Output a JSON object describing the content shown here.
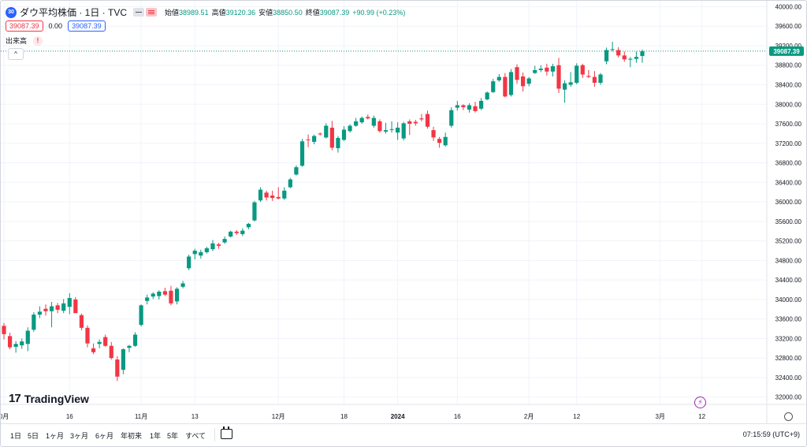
{
  "header": {
    "symbol_icon": "30",
    "title": "ダウ平均株価 · 1日 · TVC",
    "ohlc": [
      {
        "label": "始値",
        "value": "38989.51"
      },
      {
        "label": "高値",
        "value": "39120.36"
      },
      {
        "label": "安値",
        "value": "38850.50"
      },
      {
        "label": "終値",
        "value": "39087.39"
      }
    ],
    "change": "+90.99 (+0.23%)",
    "sell_price": "39087.39",
    "spread": "0.00",
    "buy_price": "39087.39",
    "volume_label": "出来高",
    "warning_mark": "!",
    "collapse_glyph": "^"
  },
  "chart_data": {
    "type": "candlestick",
    "y_ticks": [
      32000,
      32400,
      32800,
      33200,
      33600,
      34000,
      34400,
      34800,
      35200,
      35600,
      36000,
      36400,
      36800,
      37200,
      37600,
      38000,
      38400,
      38800,
      39200,
      39600,
      40000
    ],
    "y_tick_labels": [
      "32000.00",
      "32400.00",
      "32800.00",
      "33200.00",
      "33600.00",
      "34000.00",
      "34400.00",
      "34800.00",
      "35200.00",
      "35600.00",
      "36000.00",
      "36400.00",
      "36800.00",
      "37200.00",
      "37600.00",
      "38000.00",
      "38400.00",
      "38800.00",
      "39200.00",
      "39600.00",
      "40000.00"
    ],
    "ylim": [
      31850,
      40120
    ],
    "last_price_label": "39087.39",
    "last_price": 39087.39,
    "x_ticks": [
      {
        "label": "0月",
        "index": 0
      },
      {
        "label": "16",
        "index": 11
      },
      {
        "label": "11月",
        "index": 23
      },
      {
        "label": "13",
        "index": 32
      },
      {
        "label": "12月",
        "index": 46
      },
      {
        "label": "18",
        "index": 57
      },
      {
        "label": "2024",
        "index": 66
      },
      {
        "label": "16",
        "index": 76
      },
      {
        "label": "2月",
        "index": 88
      },
      {
        "label": "12",
        "index": 96
      },
      {
        "label": "3月",
        "index": 110
      },
      {
        "label": "12",
        "index": 117
      }
    ],
    "candles": [
      {
        "o": 33460,
        "h": 33520,
        "l": 33180,
        "c": 33290
      },
      {
        "o": 33250,
        "h": 33320,
        "l": 32980,
        "c": 33020
      },
      {
        "o": 33030,
        "h": 33150,
        "l": 32910,
        "c": 33090
      },
      {
        "o": 33060,
        "h": 33200,
        "l": 32990,
        "c": 33140
      },
      {
        "o": 33090,
        "h": 33430,
        "l": 32940,
        "c": 33360
      },
      {
        "o": 33380,
        "h": 33740,
        "l": 33340,
        "c": 33690
      },
      {
        "o": 33690,
        "h": 33860,
        "l": 33620,
        "c": 33750
      },
      {
        "o": 33810,
        "h": 33900,
        "l": 33670,
        "c": 33760
      },
      {
        "o": 33760,
        "h": 33950,
        "l": 33430,
        "c": 33860
      },
      {
        "o": 33880,
        "h": 33930,
        "l": 33720,
        "c": 33790
      },
      {
        "o": 33770,
        "h": 34010,
        "l": 33720,
        "c": 33920
      },
      {
        "o": 33850,
        "h": 34130,
        "l": 33700,
        "c": 34030
      },
      {
        "o": 34000,
        "h": 34050,
        "l": 33740,
        "c": 33720
      },
      {
        "o": 33680,
        "h": 33710,
        "l": 33370,
        "c": 33420
      },
      {
        "o": 33420,
        "h": 33470,
        "l": 33020,
        "c": 33100
      },
      {
        "o": 33000,
        "h": 33100,
        "l": 32880,
        "c": 32920
      },
      {
        "o": 33090,
        "h": 33180,
        "l": 33000,
        "c": 33130
      },
      {
        "o": 33230,
        "h": 33280,
        "l": 33030,
        "c": 33050
      },
      {
        "o": 33050,
        "h": 33130,
        "l": 32770,
        "c": 32800
      },
      {
        "o": 32770,
        "h": 32840,
        "l": 32330,
        "c": 32420
      },
      {
        "o": 32560,
        "h": 33000,
        "l": 32470,
        "c": 32980
      },
      {
        "o": 33010,
        "h": 33070,
        "l": 32920,
        "c": 33050
      },
      {
        "o": 33050,
        "h": 33330,
        "l": 33030,
        "c": 33280
      },
      {
        "o": 33480,
        "h": 33900,
        "l": 33450,
        "c": 33880
      },
      {
        "o": 33970,
        "h": 34100,
        "l": 33900,
        "c": 34040
      },
      {
        "o": 34060,
        "h": 34150,
        "l": 34010,
        "c": 34120
      },
      {
        "o": 34070,
        "h": 34190,
        "l": 34000,
        "c": 34160
      },
      {
        "o": 34170,
        "h": 34240,
        "l": 34070,
        "c": 34100
      },
      {
        "o": 34180,
        "h": 34280,
        "l": 33880,
        "c": 33920
      },
      {
        "o": 33960,
        "h": 34250,
        "l": 33900,
        "c": 34220
      },
      {
        "o": 34260,
        "h": 34380,
        "l": 34230,
        "c": 34330
      },
      {
        "o": 34640,
        "h": 34920,
        "l": 34600,
        "c": 34880
      },
      {
        "o": 34930,
        "h": 35040,
        "l": 34820,
        "c": 35000
      },
      {
        "o": 34900,
        "h": 35020,
        "l": 34840,
        "c": 34970
      },
      {
        "o": 34970,
        "h": 35080,
        "l": 34940,
        "c": 35050
      },
      {
        "o": 35030,
        "h": 35220,
        "l": 34990,
        "c": 35150
      },
      {
        "o": 35130,
        "h": 35160,
        "l": 35040,
        "c": 35100
      },
      {
        "o": 35170,
        "h": 35290,
        "l": 35140,
        "c": 35240
      },
      {
        "o": 35290,
        "h": 35410,
        "l": 35270,
        "c": 35390
      },
      {
        "o": 35390,
        "h": 35420,
        "l": 35320,
        "c": 35360
      },
      {
        "o": 35340,
        "h": 35460,
        "l": 35300,
        "c": 35410
      },
      {
        "o": 35480,
        "h": 35570,
        "l": 35440,
        "c": 35550
      },
      {
        "o": 35620,
        "h": 36020,
        "l": 35600,
        "c": 35990
      },
      {
        "o": 36030,
        "h": 36300,
        "l": 36000,
        "c": 36250
      },
      {
        "o": 36190,
        "h": 36230,
        "l": 36030,
        "c": 36090
      },
      {
        "o": 36130,
        "h": 36230,
        "l": 36020,
        "c": 36080
      },
      {
        "o": 36100,
        "h": 36300,
        "l": 36050,
        "c": 36070
      },
      {
        "o": 36070,
        "h": 36300,
        "l": 36040,
        "c": 36230
      },
      {
        "o": 36300,
        "h": 36490,
        "l": 36280,
        "c": 36460
      },
      {
        "o": 36560,
        "h": 36750,
        "l": 36540,
        "c": 36710
      },
      {
        "o": 36740,
        "h": 37290,
        "l": 36720,
        "c": 37240
      },
      {
        "o": 37280,
        "h": 37380,
        "l": 37120,
        "c": 37270
      },
      {
        "o": 37230,
        "h": 37380,
        "l": 37180,
        "c": 37350
      },
      {
        "o": 37400,
        "h": 37420,
        "l": 37360,
        "c": 37390
      },
      {
        "o": 37320,
        "h": 37610,
        "l": 37300,
        "c": 37560
      },
      {
        "o": 37520,
        "h": 37660,
        "l": 37060,
        "c": 37110
      },
      {
        "o": 37100,
        "h": 37350,
        "l": 37010,
        "c": 37310
      },
      {
        "o": 37270,
        "h": 37550,
        "l": 37250,
        "c": 37480
      },
      {
        "o": 37450,
        "h": 37590,
        "l": 37420,
        "c": 37560
      },
      {
        "o": 37560,
        "h": 37720,
        "l": 37540,
        "c": 37650
      },
      {
        "o": 37630,
        "h": 37750,
        "l": 37600,
        "c": 37720
      },
      {
        "o": 37740,
        "h": 37790,
        "l": 37690,
        "c": 37710
      },
      {
        "o": 37560,
        "h": 37770,
        "l": 37520,
        "c": 37720
      },
      {
        "o": 37650,
        "h": 37690,
        "l": 37420,
        "c": 37450
      },
      {
        "o": 37440,
        "h": 37620,
        "l": 37400,
        "c": 37470
      },
      {
        "o": 37480,
        "h": 37650,
        "l": 37420,
        "c": 37490
      },
      {
        "o": 37420,
        "h": 37630,
        "l": 37270,
        "c": 37520
      },
      {
        "o": 37300,
        "h": 37640,
        "l": 37260,
        "c": 37610
      },
      {
        "o": 37650,
        "h": 37690,
        "l": 37370,
        "c": 37600
      },
      {
        "o": 37640,
        "h": 37680,
        "l": 37560,
        "c": 37610
      },
      {
        "o": 37710,
        "h": 37800,
        "l": 37650,
        "c": 37690
      },
      {
        "o": 37800,
        "h": 37870,
        "l": 37500,
        "c": 37540
      },
      {
        "o": 37470,
        "h": 37540,
        "l": 37250,
        "c": 37320
      },
      {
        "o": 37290,
        "h": 37330,
        "l": 37110,
        "c": 37210
      },
      {
        "o": 37160,
        "h": 37420,
        "l": 37130,
        "c": 37330
      },
      {
        "o": 37560,
        "h": 37940,
        "l": 37520,
        "c": 37880
      },
      {
        "o": 37930,
        "h": 38070,
        "l": 37870,
        "c": 37980
      },
      {
        "o": 37980,
        "h": 38000,
        "l": 37880,
        "c": 37940
      },
      {
        "o": 37890,
        "h": 38020,
        "l": 37830,
        "c": 37980
      },
      {
        "o": 37960,
        "h": 38050,
        "l": 37830,
        "c": 37860
      },
      {
        "o": 37910,
        "h": 38130,
        "l": 37880,
        "c": 38070
      },
      {
        "o": 38100,
        "h": 38260,
        "l": 38080,
        "c": 38240
      },
      {
        "o": 38250,
        "h": 38520,
        "l": 38230,
        "c": 38470
      },
      {
        "o": 38490,
        "h": 38620,
        "l": 38460,
        "c": 38560
      },
      {
        "o": 38560,
        "h": 38640,
        "l": 38140,
        "c": 38160
      },
      {
        "o": 38190,
        "h": 38720,
        "l": 38160,
        "c": 38660
      },
      {
        "o": 38760,
        "h": 38820,
        "l": 38420,
        "c": 38500
      },
      {
        "o": 38570,
        "h": 38650,
        "l": 38260,
        "c": 38370
      },
      {
        "o": 38420,
        "h": 38560,
        "l": 38370,
        "c": 38530
      },
      {
        "o": 38640,
        "h": 38790,
        "l": 38620,
        "c": 38700
      },
      {
        "o": 38700,
        "h": 38800,
        "l": 38660,
        "c": 38730
      },
      {
        "o": 38750,
        "h": 38830,
        "l": 38590,
        "c": 38670
      },
      {
        "o": 38670,
        "h": 38830,
        "l": 38570,
        "c": 38780
      },
      {
        "o": 38800,
        "h": 38950,
        "l": 38230,
        "c": 38320
      },
      {
        "o": 38300,
        "h": 38490,
        "l": 38030,
        "c": 38430
      },
      {
        "o": 38400,
        "h": 38660,
        "l": 38360,
        "c": 38450
      },
      {
        "o": 38440,
        "h": 38840,
        "l": 38410,
        "c": 38790
      },
      {
        "o": 38800,
        "h": 38830,
        "l": 38540,
        "c": 38610
      },
      {
        "o": 38580,
        "h": 38700,
        "l": 38540,
        "c": 38560
      },
      {
        "o": 38560,
        "h": 38680,
        "l": 38360,
        "c": 38440
      },
      {
        "o": 38440,
        "h": 38640,
        "l": 38400,
        "c": 38610
      },
      {
        "o": 38880,
        "h": 39160,
        "l": 38820,
        "c": 39110
      },
      {
        "o": 39130,
        "h": 39280,
        "l": 39080,
        "c": 39130
      },
      {
        "o": 39110,
        "h": 39170,
        "l": 38960,
        "c": 39000
      },
      {
        "o": 39000,
        "h": 39080,
        "l": 38870,
        "c": 38920
      },
      {
        "o": 38930,
        "h": 38970,
        "l": 38760,
        "c": 38930
      },
      {
        "o": 38930,
        "h": 39080,
        "l": 38850,
        "c": 38970
      },
      {
        "o": 38989.51,
        "h": 39120.36,
        "l": 38850.5,
        "c": 39087.39
      }
    ],
    "colors": {
      "up": "#089981",
      "down": "#f23645",
      "grid": "#f0f3fa",
      "axis_text": "#131722",
      "last_line": "#089981"
    }
  },
  "branding": {
    "logo_text": "TradingView",
    "logo_mark": "17"
  },
  "alert_icon_glyph": "⚡",
  "toolbar": {
    "ranges": [
      "1日",
      "5日",
      "1ヶ月",
      "3ヶ月",
      "6ヶ月",
      "年初来",
      "1年",
      "5年",
      "すべて"
    ],
    "time": "07:15:59 (UTC+9)"
  }
}
